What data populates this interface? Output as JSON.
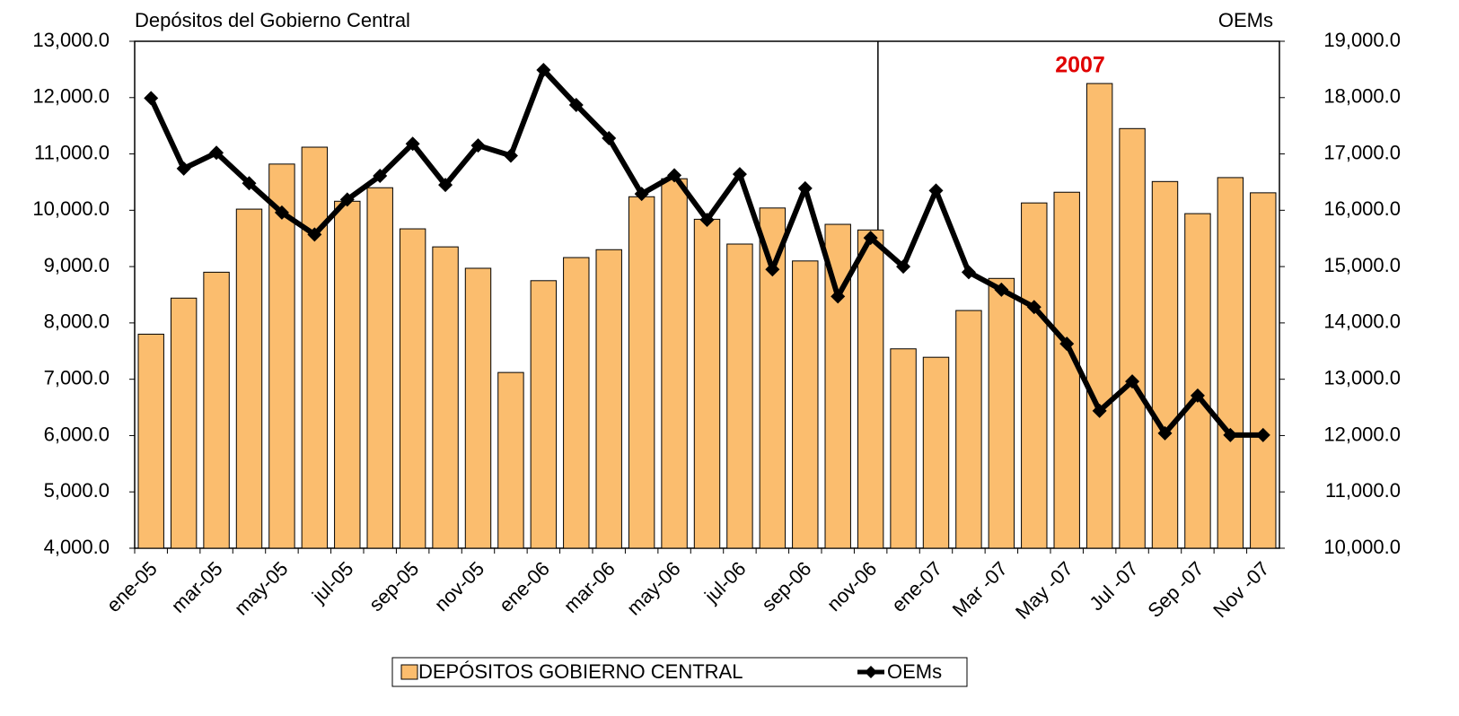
{
  "chart_data": {
    "type": "bar-line",
    "y_axis_title": "Depósitos del Gobierno Central",
    "y2_axis_title": "OEMs",
    "annotation": "2007",
    "categories": [
      "ene-05",
      null,
      "mar-05",
      null,
      "may-05",
      null,
      "jul-05",
      null,
      "sep-05",
      null,
      "nov-05",
      null,
      "ene-06",
      null,
      "mar-06",
      null,
      "may-06",
      null,
      "jul-06",
      null,
      "sep-06",
      null,
      "nov-06",
      null,
      "ene-07",
      null,
      "Mar -07",
      null,
      "May -07",
      null,
      "Jul -07",
      null,
      "Sep -07",
      null,
      "Nov -07"
    ],
    "series": [
      {
        "name": "DEPÓSITOS GOBIERNO CENTRAL",
        "type": "bar",
        "color": "#fbbd6e",
        "axis": "y",
        "values": [
          7800,
          8440,
          8900,
          10020,
          10820,
          11120,
          10160,
          10400,
          9670,
          9350,
          8970,
          7120,
          8750,
          9160,
          9300,
          10240,
          10560,
          9840,
          9400,
          10040,
          9100,
          9750,
          9650,
          7540,
          7390,
          8220,
          8790,
          10130,
          10320,
          12250,
          11450,
          10510,
          9940,
          10580,
          10310
        ]
      },
      {
        "name": "OEMs",
        "type": "line",
        "color": "#000000",
        "axis": "y2",
        "values": [
          17990,
          16740,
          17020,
          16480,
          15960,
          15570,
          16190,
          16610,
          17180,
          16450,
          17150,
          16970,
          18490,
          17870,
          17280,
          16290,
          16620,
          15830,
          16640,
          14950,
          16390,
          14470,
          15510,
          15000,
          16350,
          14900,
          14590,
          14280,
          13630,
          12440,
          12960,
          12040,
          12710,
          12010,
          12010
        ]
      }
    ],
    "ylim": [
      4000,
      13000
    ],
    "yticks": [
      {
        "value": 4000,
        "label": "4,000.0"
      },
      {
        "value": 5000,
        "label": "5,000.0"
      },
      {
        "value": 6000,
        "label": "6,000.0"
      },
      {
        "value": 7000,
        "label": "7,000.0"
      },
      {
        "value": 8000,
        "label": "8,000.0"
      },
      {
        "value": 9000,
        "label": "9,000.0"
      },
      {
        "value": 10000,
        "label": "10,000.0"
      },
      {
        "value": 11000,
        "label": "11,000.0"
      },
      {
        "value": 12000,
        "label": "12,000.0"
      },
      {
        "value": 13000,
        "label": "13,000.0"
      }
    ],
    "y2lim": [
      10000,
      19000
    ],
    "y2ticks": [
      {
        "value": 10000,
        "label": "10,000.0"
      },
      {
        "value": 11000,
        "label": "11,000.0"
      },
      {
        "value": 12000,
        "label": "12,000.0"
      },
      {
        "value": 13000,
        "label": "13,000.0"
      },
      {
        "value": 14000,
        "label": "14,000.0"
      },
      {
        "value": 15000,
        "label": "15,000.0"
      },
      {
        "value": 16000,
        "label": "16,000.0"
      },
      {
        "value": 17000,
        "label": "17,000.0"
      },
      {
        "value": 18000,
        "label": "18,000.0"
      },
      {
        "value": 19000,
        "label": "19,000.0"
      }
    ],
    "grid": false
  }
}
